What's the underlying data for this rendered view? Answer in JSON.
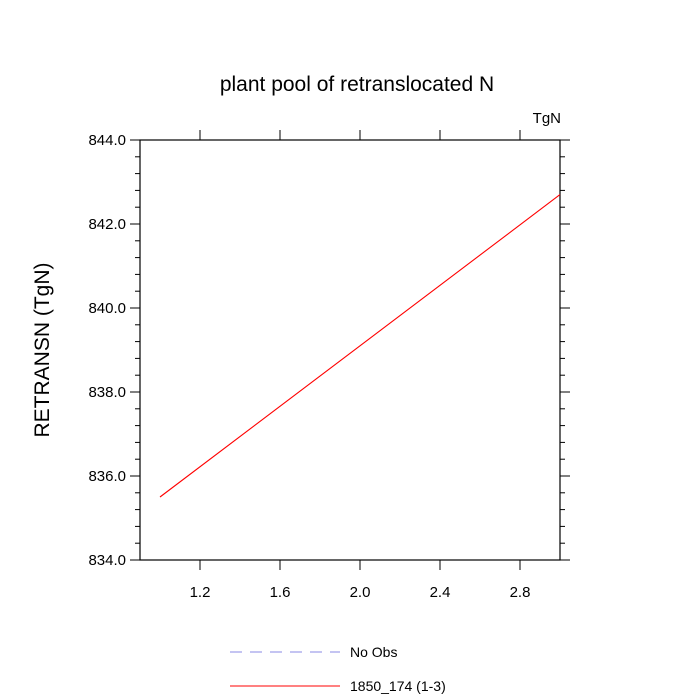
{
  "chart_data": {
    "type": "line",
    "title": "plant pool of retranslocated N",
    "units_label": "TgN",
    "ylabel": "RETRANSN  (TgN)",
    "xlabel": "",
    "xlim": [
      0.9,
      3.0
    ],
    "ylim": [
      834.0,
      844.0
    ],
    "x_ticks": [
      1.2,
      1.6,
      2.0,
      2.4,
      2.8
    ],
    "x_tick_labels": [
      "1.2",
      "1.6",
      "2.0",
      "2.4",
      "2.8"
    ],
    "y_ticks": [
      834.0,
      836.0,
      838.0,
      840.0,
      842.0,
      844.0
    ],
    "y_tick_labels": [
      "834.0",
      "836.0",
      "838.0",
      "840.0",
      "842.0",
      "844.0"
    ],
    "grid": false,
    "legend_position": "bottom",
    "series": [
      {
        "name": "No Obs",
        "x": [],
        "y": [],
        "color": "#8a8ae6",
        "dash": true
      },
      {
        "name": "1850_174 (1-3)",
        "x": [
          1,
          2,
          3
        ],
        "y": [
          835.5,
          839.1,
          842.7
        ],
        "color": "#ff0000",
        "dash": false
      }
    ]
  }
}
